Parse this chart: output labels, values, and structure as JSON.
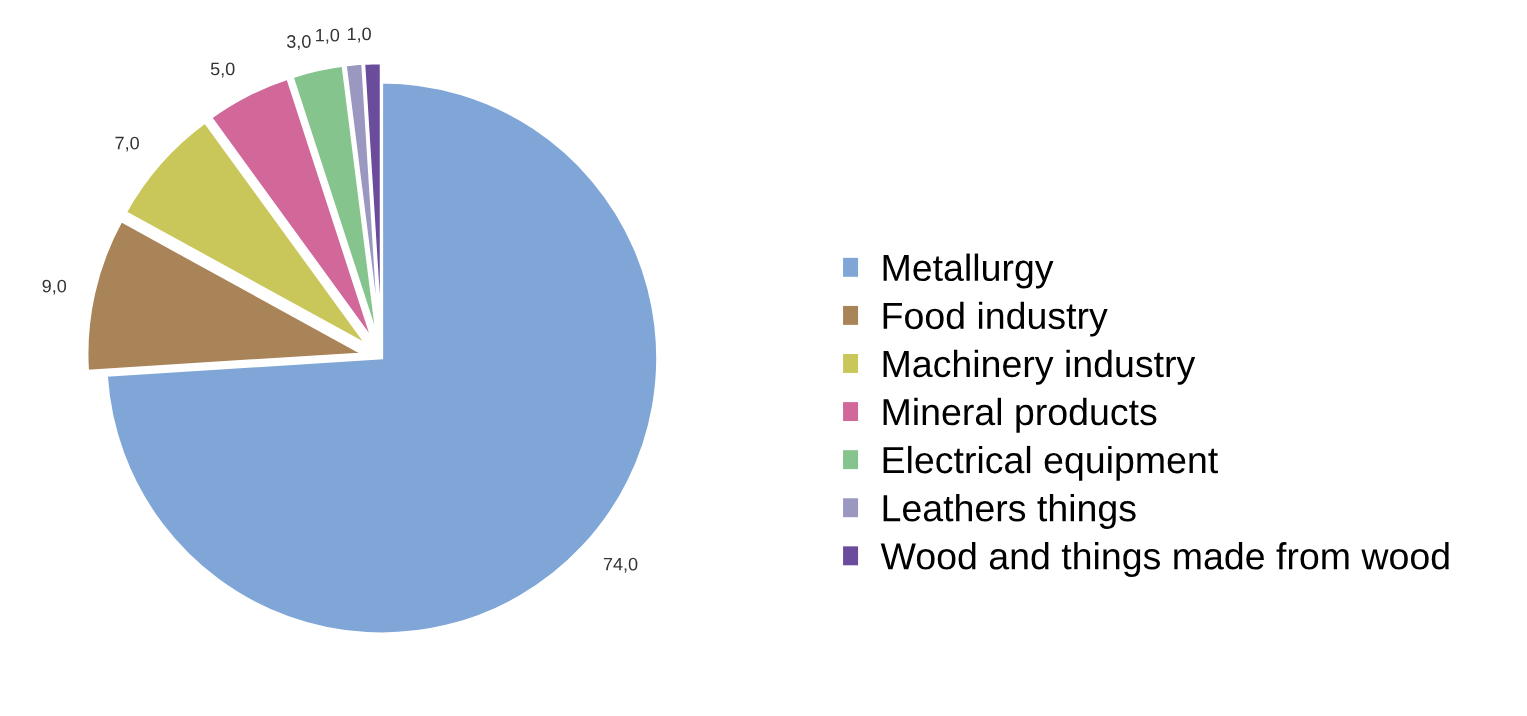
{
  "chart_data": {
    "type": "pie",
    "categories": [
      "Metallurgy",
      "Food industry",
      "Machinery industry",
      "Mineral products",
      "Electrical equipment",
      "Leathers things",
      "Wood and things made from wood"
    ],
    "values": [
      74,
      9,
      7,
      5,
      3,
      1,
      1
    ],
    "value_labels": [
      "74,0",
      "9,0",
      "7,0",
      "5,0",
      "3,0",
      "1,0",
      "1,0"
    ],
    "colors": [
      "#7fa6d6",
      "#a98458",
      "#c9c75a",
      "#d2679a",
      "#86c48e",
      "#9a98c0",
      "#6b4c9c"
    ],
    "legend": "right"
  }
}
